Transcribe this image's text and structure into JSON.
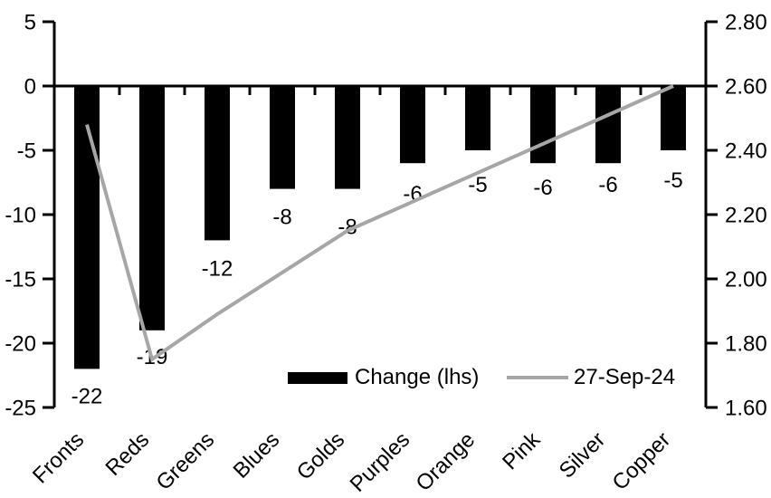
{
  "chart_data": {
    "type": "combo",
    "title": "",
    "categories": [
      "Fronts",
      "Reds",
      "Greens",
      "Blues",
      "Golds",
      "Purples",
      "Orange",
      "Pink",
      "Silver",
      "Copper"
    ],
    "series": [
      {
        "name": "Change (lhs)",
        "type": "bar",
        "axis": "left",
        "color": "#000000",
        "values": [
          -22,
          -19,
          -12,
          -8,
          -8,
          -6,
          -5,
          -6,
          -6,
          -5
        ],
        "data_labels": [
          "-22",
          "-19",
          "-12",
          "-8",
          "-8",
          "-6",
          "-5",
          "-6",
          "-6",
          "-5"
        ]
      },
      {
        "name": "27-Sep-24",
        "type": "line",
        "axis": "right",
        "color": "#a6a6a6",
        "values": [
          2.48,
          1.75,
          1.89,
          2.02,
          2.15,
          2.24,
          2.33,
          2.42,
          2.51,
          2.6
        ]
      }
    ],
    "left_axis": {
      "min": -25,
      "max": 5,
      "tick_step": 5,
      "tick_labels": [
        "5",
        "0",
        "-5",
        "-10",
        "-15",
        "-20",
        "-25"
      ]
    },
    "right_axis": {
      "min": 1.6,
      "max": 2.8,
      "tick_step": 0.2,
      "tick_labels": [
        "2.80",
        "2.60",
        "2.40",
        "2.20",
        "2.00",
        "1.80",
        "1.60"
      ]
    },
    "legend": {
      "position": "bottom-inside",
      "entries": [
        "Change (lhs)",
        "27-Sep-24"
      ]
    },
    "grid": false,
    "axis_color": "#000000"
  }
}
